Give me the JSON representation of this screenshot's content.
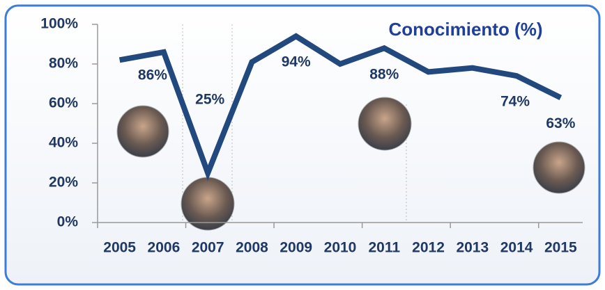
{
  "chart_data": {
    "type": "line",
    "title": "Conocimiento (%)",
    "categories": [
      "2005",
      "2006",
      "2007",
      "2008",
      "2009",
      "2010",
      "2011",
      "2012",
      "2013",
      "2014",
      "2015"
    ],
    "series": [
      {
        "name": "Conocimiento",
        "color": "#22497d",
        "values": [
          82,
          86,
          25,
          81,
          94,
          80,
          88,
          76,
          78,
          74,
          63
        ],
        "value_labels": [
          null,
          "86%",
          "25%",
          null,
          "94%",
          null,
          "88%",
          null,
          null,
          "74%",
          "63%"
        ]
      }
    ],
    "ylim": [
      0,
      100
    ],
    "yticks": [
      {
        "value": 0,
        "label": "0%"
      },
      {
        "value": 20,
        "label": "20%"
      },
      {
        "value": 40,
        "label": "40%"
      },
      {
        "value": 60,
        "label": "60%"
      },
      {
        "value": 80,
        "label": "80%"
      },
      {
        "value": 100,
        "label": "100%"
      }
    ],
    "grid": false
  }
}
